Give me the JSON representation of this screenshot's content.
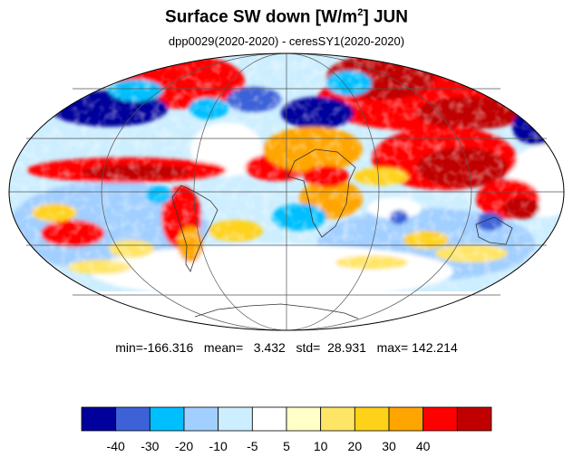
{
  "title": {
    "main": "Surface SW down [W/m",
    "exponent": "2",
    "suffix": "]  JUN"
  },
  "subtitle": "dpp0029(2020-2020) - ceresSY1(2020-2020)",
  "stats": {
    "text": "min=-166.316   mean=   3.432   std=  28.931   max= 142.214"
  },
  "colorbar": {
    "colors": [
      "#00009c",
      "#3d62d8",
      "#00bfff",
      "#a1cfff",
      "#cdeeff",
      "#ffffff",
      "#ffffc8",
      "#ffe566",
      "#ffd21a",
      "#ffa500",
      "#ff0000",
      "#c00000"
    ],
    "tick_labels": [
      "-40",
      "-30",
      "-20",
      "-10",
      "-5",
      "5",
      "10",
      "20",
      "30",
      "40"
    ]
  },
  "map": {
    "projection": "Mollweide",
    "gridlines": true
  }
}
